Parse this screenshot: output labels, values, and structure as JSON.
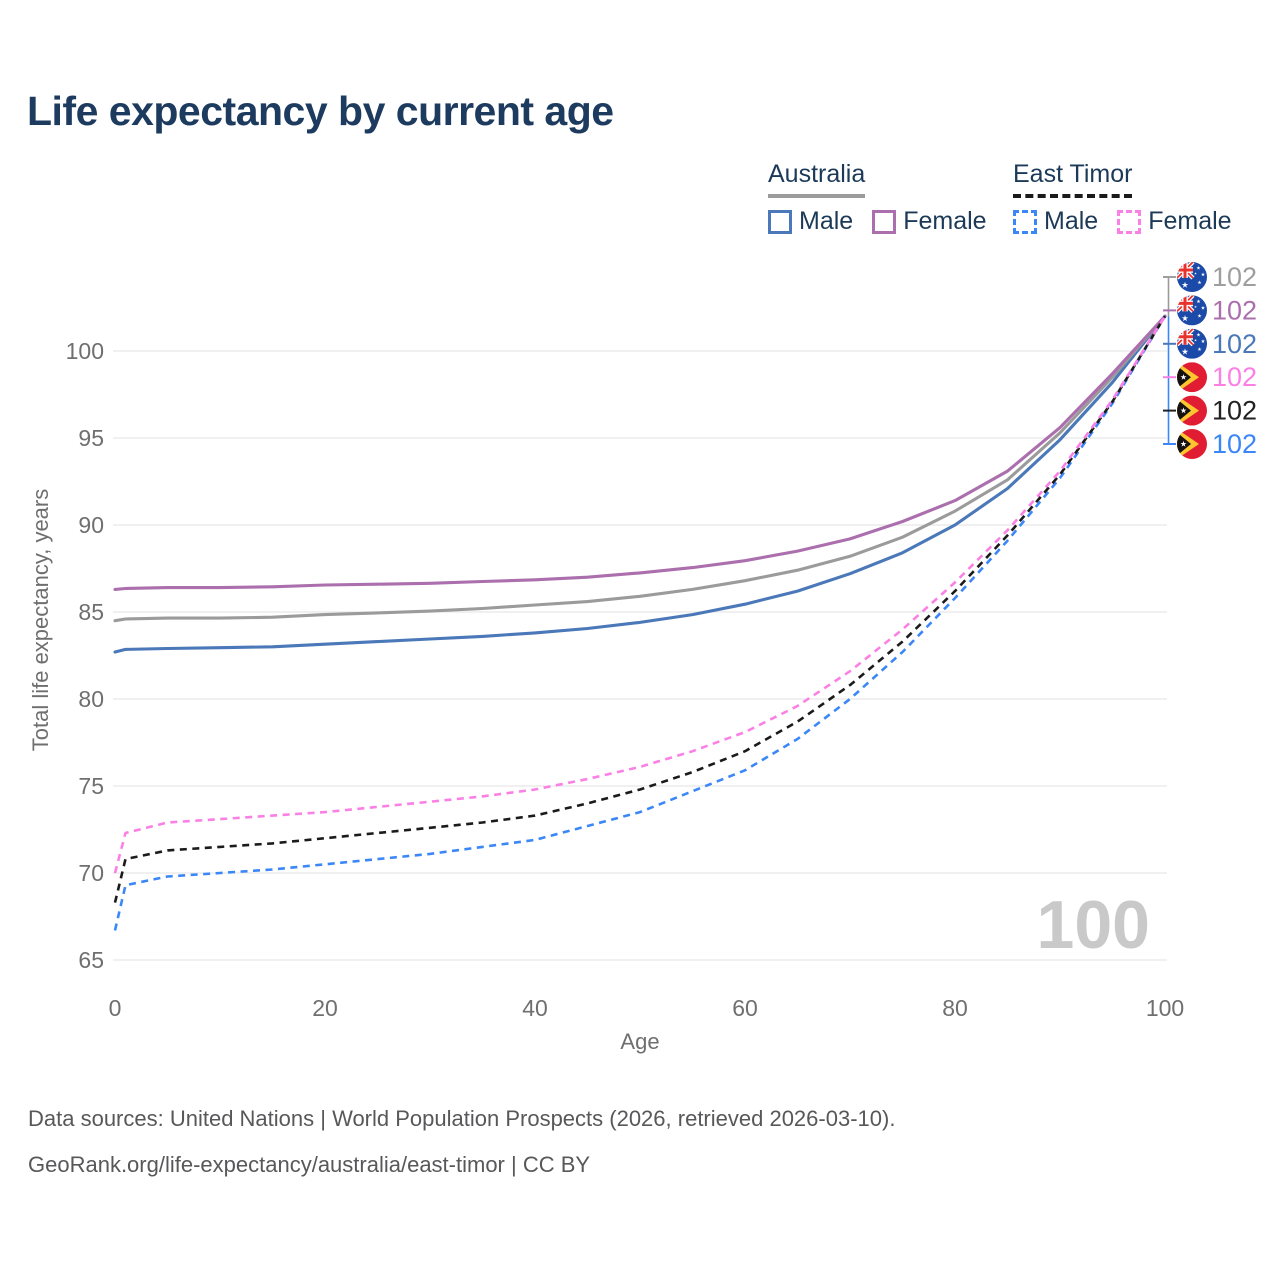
{
  "page": {
    "title": "Life expectancy by current age"
  },
  "legend": {
    "groups": [
      {
        "label": "Australia",
        "underline_color": "#9b9b9b",
        "underline_style": "solid",
        "items": [
          {
            "label": "Male",
            "color": "#4a78b8",
            "dashed": false
          },
          {
            "label": "Female",
            "color": "#ab6fad",
            "dashed": false
          }
        ]
      },
      {
        "label": "East Timor",
        "underline_color": "#1b1b1b",
        "underline_style": "dashed",
        "items": [
          {
            "label": "Male",
            "color": "#3b87f8",
            "dashed": true
          },
          {
            "label": "Female",
            "color": "#fb80e5",
            "dashed": true
          }
        ]
      }
    ]
  },
  "footer": {
    "line1": "Data sources: United Nations | World Population Prospects (2026, retrieved 2026-03-10).",
    "line2": "GeoRank.org/life-expectancy/australia/east-timor | CC BY"
  },
  "chart_data": {
    "type": "line",
    "title": "Life expectancy by current age",
    "xlabel": "Age",
    "ylabel": "Total life expectancy, years",
    "xlim": [
      0,
      100
    ],
    "ylim": [
      65,
      102
    ],
    "xticks": [
      0,
      20,
      40,
      60,
      80,
      100
    ],
    "yticks": [
      65,
      70,
      75,
      80,
      85,
      90,
      95,
      100
    ],
    "grid": true,
    "legend_position": "top-right",
    "watermark": {
      "text": "100",
      "color": "#c9c9c9"
    },
    "x": [
      0,
      1,
      5,
      10,
      15,
      20,
      25,
      30,
      35,
      40,
      45,
      50,
      55,
      60,
      65,
      70,
      75,
      80,
      85,
      90,
      95,
      100
    ],
    "series": [
      {
        "key": "australia-male",
        "country": "Australia",
        "sex": "male",
        "color": "#4a78b8",
        "dashed": false,
        "values": [
          82.7,
          82.85,
          82.9,
          82.95,
          83.0,
          83.15,
          83.3,
          83.45,
          83.6,
          83.8,
          84.05,
          84.4,
          84.85,
          85.45,
          86.2,
          87.2,
          88.4,
          90.0,
          92.1,
          94.9,
          98.2,
          102
        ]
      },
      {
        "key": "australia-overall",
        "country": "Australia",
        "sex": "all",
        "color": "#9b9b9b",
        "dashed": false,
        "values": [
          84.5,
          84.6,
          84.65,
          84.65,
          84.7,
          84.85,
          84.95,
          85.05,
          85.2,
          85.4,
          85.6,
          85.9,
          86.3,
          86.8,
          87.4,
          88.2,
          89.3,
          90.8,
          92.6,
          95.3,
          98.5,
          102
        ]
      },
      {
        "key": "australia-female",
        "country": "Australia",
        "sex": "female",
        "color": "#ab6fad",
        "dashed": false,
        "values": [
          86.3,
          86.35,
          86.4,
          86.4,
          86.45,
          86.55,
          86.6,
          86.65,
          86.75,
          86.85,
          87.0,
          87.25,
          87.55,
          87.95,
          88.5,
          89.2,
          90.2,
          91.4,
          93.1,
          95.6,
          98.7,
          102
        ]
      },
      {
        "key": "east-timor-male",
        "country": "East Timor",
        "sex": "male",
        "color": "#3b87f8",
        "dashed": true,
        "values": [
          66.7,
          69.3,
          69.8,
          70.0,
          70.2,
          70.5,
          70.8,
          71.1,
          71.5,
          71.9,
          72.7,
          73.5,
          74.7,
          75.9,
          77.7,
          80.0,
          82.7,
          85.8,
          89.1,
          92.7,
          97.0,
          102
        ]
      },
      {
        "key": "east-timor-overall",
        "country": "East Timor",
        "sex": "all",
        "color": "#1b1b1b",
        "dashed": true,
        "values": [
          68.3,
          70.8,
          71.3,
          71.5,
          71.7,
          72.0,
          72.3,
          72.6,
          72.9,
          73.3,
          74.0,
          74.8,
          75.8,
          77.0,
          78.7,
          80.8,
          83.3,
          86.2,
          89.4,
          92.9,
          97.1,
          102
        ]
      },
      {
        "key": "east-timor-female",
        "country": "East Timor",
        "sex": "female",
        "color": "#fb80e5",
        "dashed": true,
        "values": [
          70.0,
          72.3,
          72.9,
          73.1,
          73.3,
          73.5,
          73.8,
          74.1,
          74.4,
          74.8,
          75.4,
          76.1,
          77.0,
          78.1,
          79.6,
          81.6,
          84.0,
          86.7,
          89.7,
          93.1,
          97.2,
          102
        ]
      }
    ],
    "end_labels": [
      {
        "key": "australia-overall",
        "flag": "australia",
        "value": "102",
        "color": "#9e9e9e"
      },
      {
        "key": "australia-female",
        "flag": "australia",
        "value": "102",
        "color": "#ab6fad"
      },
      {
        "key": "australia-male",
        "flag": "australia",
        "value": "102",
        "color": "#4a78b8"
      },
      {
        "key": "east-timor-female",
        "flag": "east-timor",
        "value": "102",
        "color": "#fb80e5"
      },
      {
        "key": "east-timor-overall",
        "flag": "east-timor",
        "value": "102",
        "color": "#222222"
      },
      {
        "key": "east-timor-male",
        "flag": "east-timor",
        "value": "102",
        "color": "#3b87f8"
      }
    ]
  }
}
